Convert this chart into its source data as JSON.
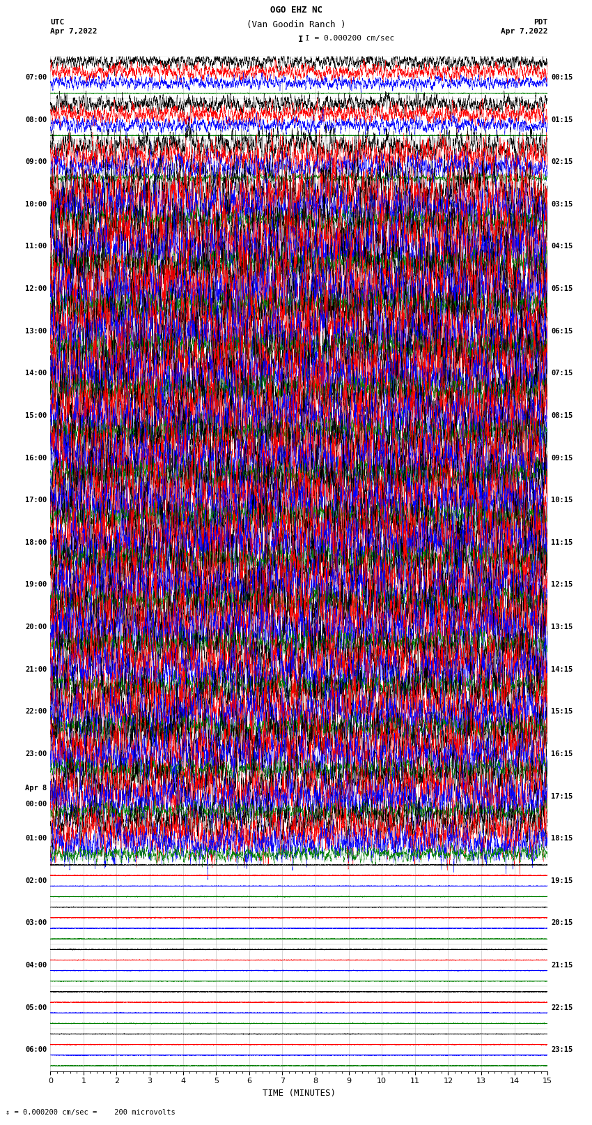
{
  "title_line1": "OGO EHZ NC",
  "title_line2": "(Van Goodin Ranch )",
  "scale_label": "I = 0.000200 cm/sec",
  "left_date": "Apr 7,2022",
  "right_date": "Apr 7,2022",
  "left_tz": "UTC",
  "right_tz": "PDT",
  "bottom_label": "TIME (MINUTES)",
  "bottom_note": "0.000200 cm/sec =    200 microvolts",
  "xlabel_ticks": [
    0,
    1,
    2,
    3,
    4,
    5,
    6,
    7,
    8,
    9,
    10,
    11,
    12,
    13,
    14,
    15
  ],
  "right_time_labels": [
    "00:15",
    "01:15",
    "02:15",
    "03:15",
    "04:15",
    "05:15",
    "06:15",
    "07:15",
    "08:15",
    "09:15",
    "10:15",
    "11:15",
    "12:15",
    "13:15",
    "14:15",
    "15:15",
    "16:15",
    "17:15",
    "18:15",
    "19:15",
    "20:15",
    "21:15",
    "22:15",
    "23:15"
  ],
  "left_time_labels_utc": [
    "07:00",
    "08:00",
    "09:00",
    "10:00",
    "11:00",
    "12:00",
    "13:00",
    "14:00",
    "15:00",
    "16:00",
    "17:00",
    "18:00",
    "19:00",
    "20:00",
    "21:00",
    "22:00",
    "23:00",
    "Apr 8|00:00",
    "01:00",
    "02:00",
    "03:00",
    "04:00",
    "05:00",
    "06:00"
  ],
  "n_rows": 24,
  "traces_per_row": 4,
  "colors": [
    "#000000",
    "#ff0000",
    "#0000ff",
    "#008000"
  ],
  "bg_color": "#ffffff",
  "grid_color": "#888888",
  "fig_width": 8.5,
  "fig_height": 16.13,
  "row_amplitudes": [
    0.18,
    0.22,
    0.38,
    0.7,
    0.85,
    0.88,
    0.88,
    0.88,
    0.88,
    0.88,
    0.88,
    0.88,
    0.88,
    0.85,
    0.75,
    0.78,
    0.72,
    0.68,
    0.55,
    0.05,
    0.03,
    0.02,
    0.08,
    0.08
  ],
  "row_green_amplitudes": [
    0.06,
    0.06,
    0.1,
    0.25,
    0.3,
    0.32,
    0.32,
    0.32,
    0.32,
    0.32,
    0.32,
    0.32,
    0.32,
    0.3,
    0.28,
    0.28,
    0.25,
    0.22,
    0.18,
    0.03,
    0.02,
    0.01,
    0.05,
    0.05
  ],
  "noise_seed": 12345
}
